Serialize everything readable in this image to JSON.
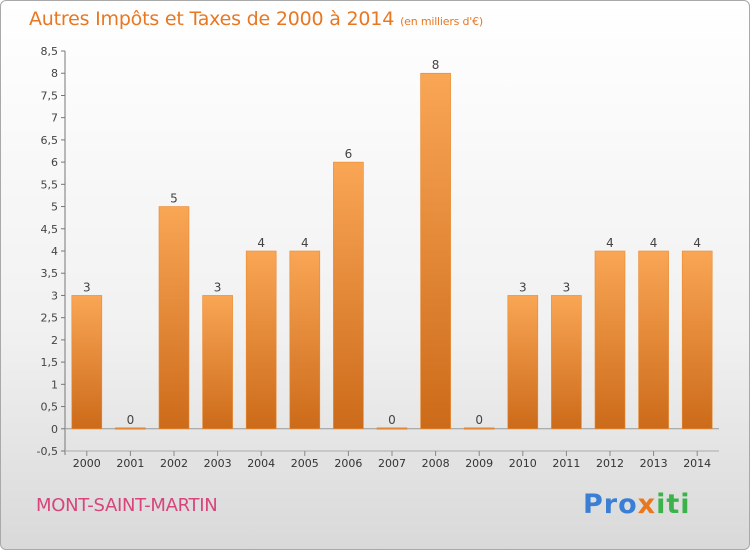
{
  "title": "Autres Impôts et Taxes de 2000 à 2014",
  "subtitle": "(en milliers d'€)",
  "commune": "MONT-SAINT-MARTIN",
  "logo": {
    "part1": "Pro",
    "part2": "x",
    "part3": "iti"
  },
  "colors": {
    "title": "#e87722",
    "commune": "#d9447a",
    "bar_light": "#f7a24f",
    "bar_dark": "#cf6e1c"
  },
  "chart_data": {
    "type": "bar",
    "categories": [
      "2000",
      "2001",
      "2002",
      "2003",
      "2004",
      "2005",
      "2006",
      "2007",
      "2008",
      "2009",
      "2010",
      "2011",
      "2012",
      "2013",
      "2014"
    ],
    "values": [
      3,
      0,
      5,
      3,
      4,
      4,
      6,
      0,
      8,
      0,
      3,
      3,
      4,
      4,
      4
    ],
    "data_labels": [
      "3",
      "0",
      "5",
      "3",
      "4",
      "4",
      "6",
      "0",
      "8",
      "0",
      "3",
      "3",
      "4",
      "4",
      "4"
    ],
    "yticks": [
      "-0,5",
      "0",
      "0,5",
      "1",
      "1,5",
      "2",
      "2,5",
      "3",
      "3,5",
      "4",
      "4,5",
      "5",
      "5,5",
      "6",
      "6,5",
      "7",
      "7,5",
      "8",
      "8,5"
    ],
    "ylim": [
      -0.5,
      8.5
    ],
    "grid": false,
    "legend": "none"
  }
}
